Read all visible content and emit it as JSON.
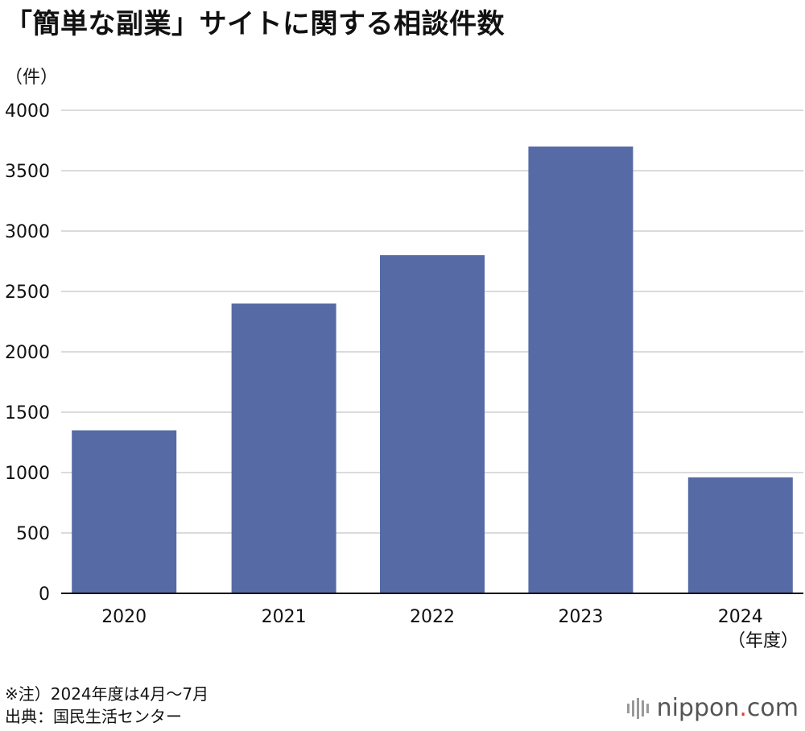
{
  "header": {
    "title": "「簡単な副業」サイトに関する相談件数",
    "unit": "（件）"
  },
  "footer": {
    "note": "※注）2024年度は4月～7月",
    "source": "出典：国民生活センター",
    "logo_main": "nippon",
    "logo_dot": ".",
    "logo_tld": "com"
  },
  "chart_data": {
    "type": "bar",
    "title": "「簡単な副業」サイトに関する相談件数",
    "ylabel": "（件）",
    "xlabel": "（年度）",
    "categories": [
      "2020",
      "2021",
      "2022",
      "2023",
      "2024"
    ],
    "values": [
      1350,
      2400,
      2800,
      3700,
      960
    ],
    "ylim": [
      0,
      4000
    ],
    "yticks": [
      0,
      500,
      1000,
      1500,
      2000,
      2500,
      3000,
      3500,
      4000
    ],
    "grid": true,
    "colors": {
      "bar": "#566ba6",
      "grid": "#cfcfcf",
      "axis": "#111111"
    }
  }
}
